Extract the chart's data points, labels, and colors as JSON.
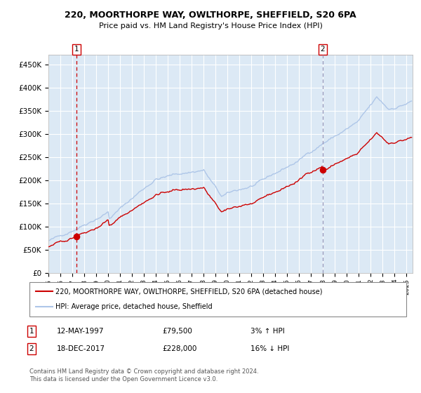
{
  "title_line1": "220, MOORTHORPE WAY, OWLTHORPE, SHEFFIELD, S20 6PA",
  "title_line2": "Price paid vs. HM Land Registry's House Price Index (HPI)",
  "legend_line1": "220, MOORTHORPE WAY, OWLTHORPE, SHEFFIELD, S20 6PA (detached house)",
  "legend_line2": "HPI: Average price, detached house, Sheffield",
  "annotation1_date": "12-MAY-1997",
  "annotation1_price": "£79,500",
  "annotation1_hpi": "3% ↑ HPI",
  "annotation2_date": "18-DEC-2017",
  "annotation2_price": "£228,000",
  "annotation2_hpi": "16% ↓ HPI",
  "footer": "Contains HM Land Registry data © Crown copyright and database right 2024.\nThis data is licensed under the Open Government Licence v3.0.",
  "purchase1_year": 1997.37,
  "purchase1_price": 79500,
  "purchase2_year": 2017.96,
  "purchase2_price": 228000,
  "hpi_line_color": "#aec6e8",
  "property_line_color": "#cc0000",
  "vline1_color": "#cc0000",
  "vline2_color": "#9999bb",
  "dot_color": "#cc0000",
  "plot_bg_color": "#dce9f5",
  "grid_color": "#ffffff",
  "ylim_min": 0,
  "ylim_max": 470000,
  "xlim_min": 1995.0,
  "xlim_max": 2025.5
}
